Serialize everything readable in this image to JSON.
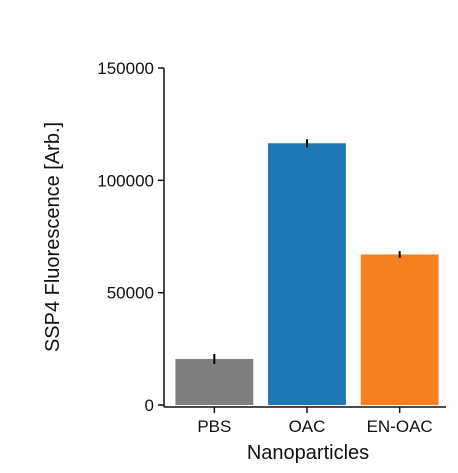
{
  "chart_data": {
    "type": "bar",
    "categories": [
      "PBS",
      "OAC",
      "EN-OAC"
    ],
    "values": [
      20500,
      116500,
      67000
    ],
    "errors": [
      2200,
      1800,
      1500
    ],
    "colors": [
      "#7f7f7f",
      "#1f77b4",
      "#f5801f"
    ],
    "xlabel": "Nanoparticles",
    "ylabel": "SSP4 Fluorescence [Arb.]",
    "ylim": [
      0,
      150000
    ],
    "yticks": [
      0,
      50000,
      100000,
      150000
    ],
    "ytick_labels": [
      "0",
      "50000",
      "100000",
      "150000"
    ],
    "grid": false,
    "legend": false
  }
}
